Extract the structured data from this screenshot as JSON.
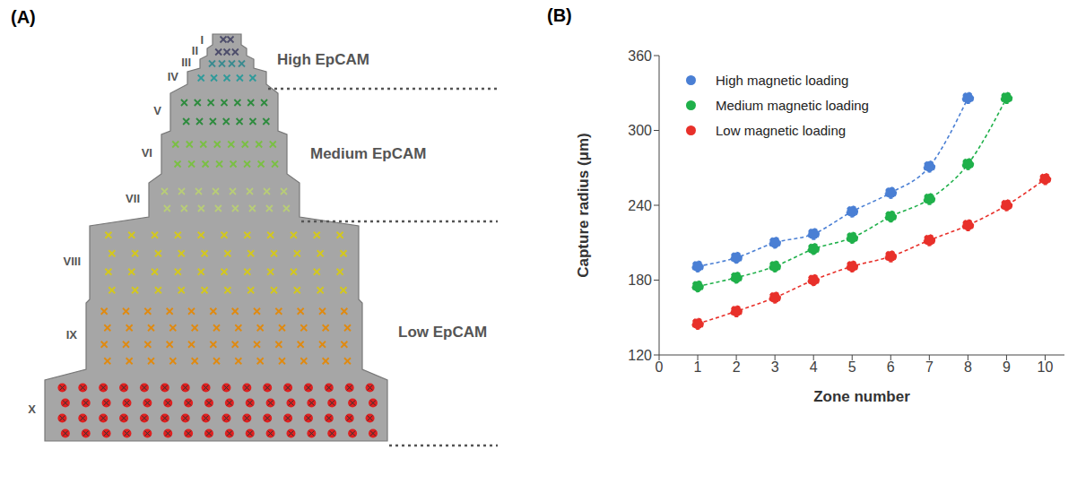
{
  "diagram": {
    "letter": "(A)",
    "zones": [
      {
        "label": "I",
        "color": "#4d4d6b"
      },
      {
        "label": "II",
        "color": "#4d4d6b"
      },
      {
        "label": "III",
        "color": "#3a8a8f"
      },
      {
        "label": "IV",
        "color": "#2f9a9a"
      },
      {
        "label": "V",
        "color": "#2e8b3e"
      },
      {
        "label": "VI",
        "color": "#7ac043"
      },
      {
        "label": "VII",
        "color": "#b8cc78"
      },
      {
        "label": "VIII",
        "color": "#d4c81c"
      },
      {
        "label": "IX",
        "color": "#e08a10"
      },
      {
        "label": "X",
        "color": "#e02020"
      }
    ],
    "groups": [
      {
        "label": "High EpCAM",
        "zones": [
          "I",
          "II",
          "III",
          "IV"
        ]
      },
      {
        "label": "Medium EpCAM",
        "zones": [
          "V",
          "VI",
          "VII"
        ]
      },
      {
        "label": "Low EpCAM",
        "zones": [
          "VIII",
          "IX",
          "X"
        ]
      }
    ]
  },
  "chart_data": {
    "letter": "(B)",
    "type": "line",
    "x_label": "Zone number",
    "y_label": "Capture radius (μm)",
    "x": [
      1,
      2,
      3,
      4,
      5,
      6,
      7,
      8,
      9,
      10
    ],
    "series": [
      {
        "name": "High magnetic loading",
        "color": "#4a7fd4",
        "marker": "circle",
        "line_style": "dashed",
        "values": [
          191,
          198,
          210,
          217,
          235,
          250,
          271,
          326,
          null,
          null
        ]
      },
      {
        "name": "Medium magnetic loading",
        "color": "#1fb04a",
        "marker": "circle",
        "line_style": "dashed",
        "values": [
          175,
          182,
          191,
          205,
          214,
          231,
          245,
          273,
          326,
          null
        ]
      },
      {
        "name": "Low magnetic loading",
        "color": "#e8302a",
        "marker": "circle",
        "line_style": "dashed",
        "values": [
          145,
          155,
          166,
          180,
          191,
          199,
          212,
          224,
          240,
          261
        ]
      }
    ],
    "xlim": [
      0,
      10.5
    ],
    "xticks": [
      0,
      1,
      2,
      3,
      4,
      5,
      6,
      7,
      8,
      9,
      10
    ],
    "ylim": [
      120,
      360
    ],
    "yticks": [
      120,
      180,
      240,
      300,
      360
    ],
    "grid": false,
    "legend": "upper left"
  }
}
